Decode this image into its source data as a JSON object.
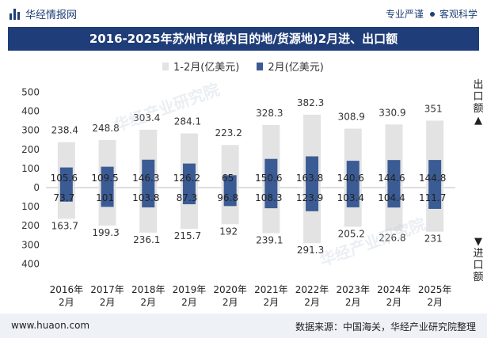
{
  "header": {
    "brand": "华经情报网",
    "tagline_left": "专业严谨",
    "tagline_right": "客观科学"
  },
  "title": "2016-2025年苏州市(境内目的地/货源地)2月进、出口额",
  "side_labels": {
    "export": "出口额",
    "import": "进口额"
  },
  "footer": {
    "url": "www.huaon.com",
    "source": "数据来源：中国海关，华经产业研究院整理"
  },
  "watermark": "华经产业研究院",
  "colors": {
    "jan_feb": "#e3e3e3",
    "feb": "#3b5b94",
    "title_bg": "#1f3d78"
  },
  "chart_data": {
    "type": "bar",
    "title": "2016-2025年苏州市(境内目的地/货源地)2月进、出口额",
    "categories": [
      "2016年2月",
      "2017年2月",
      "2018年2月",
      "2019年2月",
      "2020年2月",
      "2021年2月",
      "2022年2月",
      "2023年2月",
      "2024年2月",
      "2025年2月"
    ],
    "ylim": [
      -400,
      500
    ],
    "yticks": [
      -400,
      -300,
      -200,
      -100,
      0,
      100,
      200,
      300,
      400,
      500
    ],
    "ytick_labels": [
      "400",
      "300",
      "200",
      "100",
      "0",
      "100",
      "200",
      "300",
      "400",
      "500"
    ],
    "series": [
      {
        "name": "1-2月(亿美元)",
        "export": [
          238.4,
          248.8,
          303.4,
          284.1,
          223.2,
          328.3,
          382.3,
          308.9,
          330.9,
          351
        ],
        "import": [
          163.7,
          199.3,
          236.1,
          215.7,
          192,
          239.1,
          291.3,
          205.2,
          226.8,
          231
        ]
      },
      {
        "name": "2月(亿美元)",
        "export": [
          105.6,
          109.5,
          146.3,
          126.2,
          65,
          150.6,
          163.8,
          140.6,
          144.6,
          144.8
        ],
        "import": [
          73.7,
          101,
          103.8,
          87.3,
          96.8,
          108.3,
          123.9,
          103.4,
          104.4,
          111.7
        ]
      }
    ],
    "export_labels": {
      "jan_feb": [
        "238.4",
        "248.8",
        "303.4",
        "284.1",
        "223.2",
        "328.3",
        "382.3",
        "308.9",
        "330.9",
        "351"
      ],
      "feb": [
        "105.6",
        "109.5",
        "146.3",
        "126.2",
        "65",
        "150.6",
        "163.8",
        "140.6",
        "144.6",
        "144.8"
      ]
    },
    "import_labels": {
      "jan_feb": [
        "163.7",
        "199.3",
        "236.1",
        "215.7",
        "192",
        "239.1",
        "291.3",
        "205.2",
        "226.8",
        "231"
      ],
      "feb": [
        "73.7",
        "101",
        "103.8",
        "87.3",
        "96.8",
        "108.3",
        "123.9",
        "103.4",
        "104.4",
        "111.7"
      ]
    }
  }
}
